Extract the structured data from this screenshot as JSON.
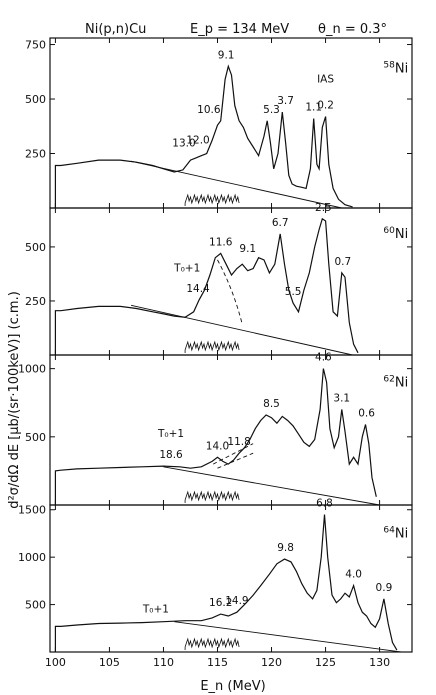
{
  "header": {
    "reaction": "Ni(p,n)Cu",
    "beam_energy": "E_p = 134 MeV",
    "angle": "θ_n = 0.3°"
  },
  "ylabel": "d²σ/dΩ dE  [μb/(sr·100keV)] (c.m.)",
  "xlabel": "E_n (MeV)",
  "chart_data": [
    {
      "type": "line",
      "target": "58Ni",
      "xlim": [
        99.5,
        133
      ],
      "ylim": [
        0,
        780
      ],
      "yticks": [
        250,
        500,
        750
      ],
      "series": [
        {
          "x": [
            100,
            100.5,
            102,
            104,
            106,
            107.5,
            109,
            110,
            111,
            111.8,
            112.5,
            113,
            113.5,
            114,
            114.5,
            115,
            115.3,
            115.7,
            116,
            116.3,
            116.6,
            117,
            117.4,
            117.8,
            118.3,
            118.8,
            119.3,
            119.6,
            119.9,
            120.2,
            120.6,
            121,
            121.3,
            121.6,
            121.9,
            122.3,
            122.8,
            123.2,
            123.6,
            123.9,
            124.2,
            124.4,
            124.7,
            125,
            125.3,
            125.7,
            126.2,
            126.8,
            127.5
          ],
          "y": [
            195,
            195,
            205,
            220,
            220,
            210,
            195,
            180,
            165,
            175,
            220,
            230,
            240,
            250,
            310,
            380,
            400,
            590,
            650,
            610,
            470,
            400,
            370,
            320,
            280,
            240,
            330,
            400,
            300,
            180,
            250,
            440,
            300,
            150,
            110,
            100,
            95,
            90,
            180,
            410,
            200,
            180,
            370,
            420,
            200,
            90,
            40,
            15,
            5
          ]
        }
      ],
      "baseline": {
        "x": [
          107,
          126.5
        ],
        "y": [
          215,
          0
        ]
      },
      "annotations": [
        {
          "label": "9.1",
          "x": 115.8,
          "y": 650
        },
        {
          "label": "10.6",
          "x": 114.2,
          "y": 400
        },
        {
          "label": "12.0",
          "x": 113.2,
          "y": 260
        },
        {
          "label": "13.0",
          "x": 111.9,
          "y": 245
        },
        {
          "label": "5.3",
          "x": 120,
          "y": 400
        },
        {
          "label": "3.7",
          "x": 121.3,
          "y": 440
        },
        {
          "label": "1.1",
          "x": 123.9,
          "y": 410
        },
        {
          "label": "0.2",
          "x": 125,
          "y": 420
        },
        {
          "label": "IAS",
          "x": 125,
          "y": 540
        },
        {
          "label": "58Ni",
          "x": 131.5,
          "y": 640
        }
      ]
    },
    {
      "type": "line",
      "target": "60Ni",
      "xlim": [
        99.5,
        133
      ],
      "ylim": [
        0,
        680
      ],
      "yticks": [
        250,
        500
      ],
      "series": [
        {
          "x": [
            100,
            100.5,
            102,
            104,
            106,
            107.5,
            109,
            110,
            111,
            112,
            112.8,
            113.3,
            113.8,
            114.3,
            114.8,
            115.3,
            115.8,
            116.3,
            116.8,
            117.3,
            117.8,
            118.3,
            118.8,
            119.3,
            119.8,
            120.3,
            120.8,
            121.2,
            121.6,
            122,
            122.5,
            123,
            123.5,
            124,
            124.4,
            124.7,
            125,
            125.3,
            125.7,
            126.1,
            126.5,
            126.8,
            127.2,
            127.6,
            128
          ],
          "y": [
            205,
            205,
            215,
            225,
            225,
            215,
            200,
            190,
            180,
            175,
            200,
            255,
            300,
            370,
            450,
            470,
            420,
            370,
            400,
            420,
            390,
            400,
            450,
            440,
            380,
            420,
            560,
            420,
            300,
            240,
            200,
            300,
            380,
            500,
            580,
            630,
            620,
            420,
            200,
            180,
            380,
            360,
            150,
            50,
            10
          ]
        }
      ],
      "baseline": {
        "x": [
          107,
          127.5
        ],
        "y": [
          230,
          0
        ]
      },
      "annotations": [
        {
          "label": "2.5",
          "x": 124.8,
          "y": 630
        },
        {
          "label": "6.7",
          "x": 120.8,
          "y": 560
        },
        {
          "label": "9.1",
          "x": 117.8,
          "y": 440
        },
        {
          "label": "11.6",
          "x": 115.3,
          "y": 470
        },
        {
          "label": "14.4",
          "x": 113.2,
          "y": 255
        },
        {
          "label": "T₀+1",
          "x": 112.2,
          "y": 350
        },
        {
          "label": "5.5",
          "x": 122,
          "y": 240
        },
        {
          "label": "0.7",
          "x": 126.6,
          "y": 380
        },
        {
          "label": "60Ni",
          "x": 131.5,
          "y": 560
        }
      ]
    },
    {
      "type": "line",
      "target": "62Ni",
      "xlim": [
        99.5,
        133
      ],
      "ylim": [
        0,
        1100
      ],
      "yticks": [
        500,
        1000
      ],
      "series": [
        {
          "x": [
            100,
            100.5,
            102,
            104,
            106,
            108,
            110,
            111.5,
            112.5,
            113.5,
            114.5,
            115,
            115.5,
            116,
            116.5,
            117,
            117.5,
            118,
            118.5,
            119,
            119.5,
            120,
            120.5,
            121,
            121.5,
            122,
            122.5,
            123,
            123.5,
            124,
            124.5,
            124.8,
            125.1,
            125.4,
            125.8,
            126.2,
            126.5,
            126.8,
            127.2,
            127.6,
            128,
            128.4,
            128.7,
            129,
            129.3,
            129.7
          ],
          "y": [
            250,
            255,
            265,
            270,
            275,
            280,
            285,
            280,
            270,
            280,
            320,
            350,
            320,
            300,
            330,
            380,
            420,
            480,
            560,
            620,
            660,
            640,
            600,
            650,
            620,
            580,
            520,
            460,
            430,
            480,
            700,
            1000,
            900,
            560,
            420,
            500,
            700,
            540,
            300,
            350,
            300,
            500,
            590,
            450,
            200,
            60
          ]
        }
      ],
      "baseline": {
        "x": [
          110,
          130
        ],
        "y": [
          280,
          0
        ]
      },
      "annotations": [
        {
          "label": "4.6",
          "x": 124.8,
          "y": 1000
        },
        {
          "label": "8.5",
          "x": 120,
          "y": 660
        },
        {
          "label": "11.8",
          "x": 117,
          "y": 380
        },
        {
          "label": "14.0",
          "x": 115,
          "y": 350
        },
        {
          "label": "18.6",
          "x": 110.7,
          "y": 285
        },
        {
          "label": "T₀+1",
          "x": 110.7,
          "y": 440
        },
        {
          "label": "3.1",
          "x": 126.5,
          "y": 700
        },
        {
          "label": "0.6",
          "x": 128.8,
          "y": 590
        },
        {
          "label": "62Ni",
          "x": 131.5,
          "y": 900
        }
      ]
    },
    {
      "type": "line",
      "target": "64Ni",
      "xlim": [
        99.5,
        133
      ],
      "ylim": [
        0,
        1550
      ],
      "yticks": [
        500,
        1000,
        1500
      ],
      "series": [
        {
          "x": [
            100,
            100.5,
            102,
            104,
            106,
            108,
            110,
            112,
            113.5,
            114.5,
            115.3,
            116,
            116.8,
            117.5,
            118.3,
            119,
            119.8,
            120.5,
            121.2,
            121.8,
            122.3,
            122.8,
            123.3,
            123.8,
            124.2,
            124.6,
            124.9,
            125.2,
            125.6,
            126,
            126.4,
            126.8,
            127.2,
            127.6,
            128,
            128.4,
            128.8,
            129.2,
            129.6,
            130,
            130.4,
            130.8,
            131.2,
            131.6
          ],
          "y": [
            270,
            270,
            285,
            300,
            305,
            310,
            320,
            330,
            330,
            360,
            400,
            380,
            420,
            500,
            600,
            700,
            820,
            930,
            980,
            950,
            850,
            720,
            620,
            560,
            650,
            1000,
            1450,
            1000,
            600,
            520,
            560,
            620,
            580,
            700,
            520,
            420,
            380,
            300,
            260,
            350,
            560,
            300,
            100,
            20
          ]
        }
      ],
      "baseline": {
        "x": [
          111,
          132
        ],
        "y": [
          320,
          0
        ]
      },
      "annotations": [
        {
          "label": "6.8",
          "x": 124.9,
          "y": 1450
        },
        {
          "label": "9.8",
          "x": 121.3,
          "y": 980
        },
        {
          "label": "16.2",
          "x": 115.3,
          "y": 400
        },
        {
          "label": "14.9",
          "x": 116.8,
          "y": 420
        },
        {
          "label": "T₀+1",
          "x": 109.3,
          "y": 330
        },
        {
          "label": "4.0",
          "x": 127.6,
          "y": 700
        },
        {
          "label": "0.9",
          "x": 130.4,
          "y": 560
        },
        {
          "label": "64Ni",
          "x": 131.5,
          "y": 1250
        }
      ],
      "xticks": [
        100,
        105,
        110,
        115,
        120,
        125,
        130
      ]
    }
  ]
}
